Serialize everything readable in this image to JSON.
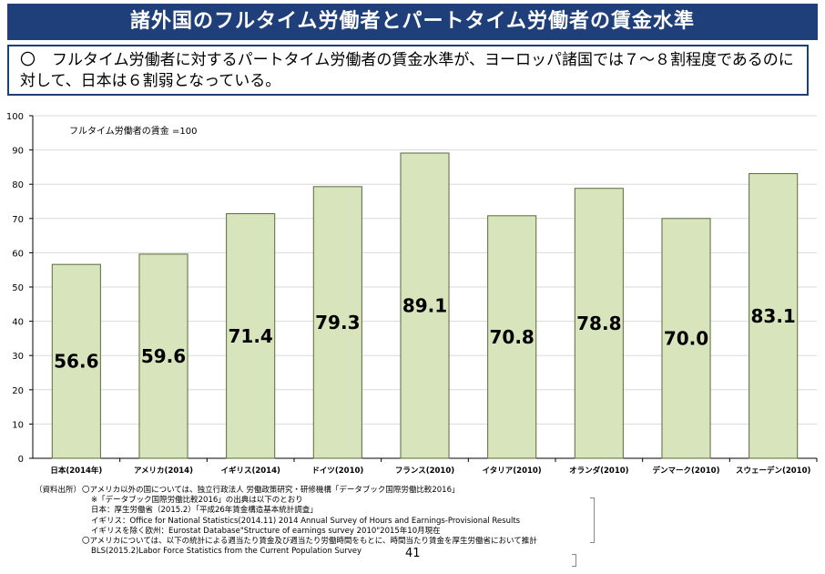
{
  "header": {
    "title": "諸外国のフルタイム労働者とパートタイム労働者の賃金水準"
  },
  "summary": {
    "marker": "〇",
    "text": "フルタイム労働者に対するパートタイム労働者の賃金水準が、ヨーロッパ諸国では７～８割程度であるのに対して、日本は６割弱となっている。"
  },
  "chart_data": {
    "type": "bar",
    "note": "フルタイム労働者の賃金 =100",
    "categories": [
      "日本(2014年)",
      "アメリカ(2014)",
      "イギリス(2014)",
      "ドイツ(2010)",
      "フランス(2010)",
      "イタリア(2010)",
      "オランダ(2010)",
      "デンマーク(2010)",
      "スウェーデン(2010)"
    ],
    "values": [
      56.6,
      59.6,
      71.4,
      79.3,
      89.1,
      70.8,
      78.8,
      70.0,
      83.1
    ],
    "value_labels": [
      "56.6",
      "59.6",
      "71.4",
      "79.3",
      "89.1",
      "70.8",
      "78.8",
      "70.0",
      "83.1"
    ],
    "ylim": [
      0,
      100
    ],
    "yticks": [
      0,
      10,
      20,
      30,
      40,
      50,
      60,
      70,
      80,
      90,
      100
    ],
    "ylabel": "",
    "xlabel": "",
    "grid": true,
    "colors": {
      "bar_fill": "#d7e4bc",
      "bar_stroke": "#5b6b3a",
      "grid": "#d9d9d9",
      "axis": "#000000"
    }
  },
  "source": {
    "label": "（資料出所）",
    "line1": "〇アメリカ以外の国については、独立行政法人 労働政策研究・研修機構「データブック国際労働比較2016」",
    "line2": "※「データブック国際労働比較2016」の出典は以下のとおり",
    "line3": "日本：厚生労働省（2015.2）「平成26年賃金構造基本統計調査」",
    "line4": "イギリス：Office for National Statistics(2014.11) 2014 Annual Survey of  Hours and Earnings-Provisional Results",
    "line5": "イギリスを除く欧州：Eurostat Database\"Structure of earnings survey 2010\"2015年10月現在",
    "line6": "〇アメリカについては、以下の統計による週当たり賃金及び週当たり労働時間をもとに、時間当たり賃金を厚生労働省において推計",
    "line7": "BLS(2015.2)Labor Force Statistics from the Current Population Survey"
  },
  "page_number": "41"
}
